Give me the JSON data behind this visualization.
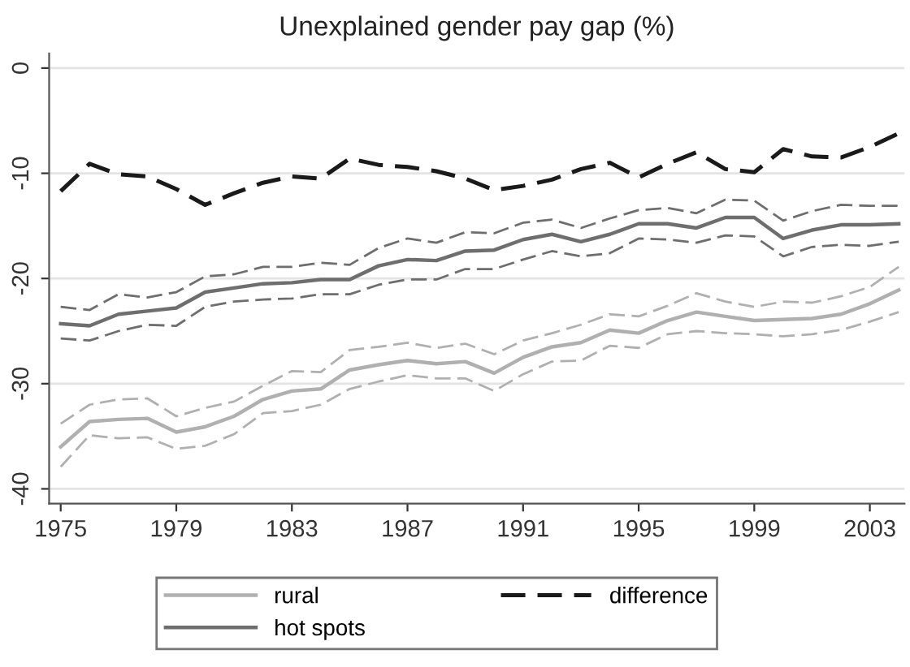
{
  "chart_data": {
    "type": "line",
    "title": "Unexplained gender pay gap (%)",
    "x": [
      1975,
      1976,
      1977,
      1978,
      1979,
      1980,
      1981,
      1982,
      1983,
      1984,
      1985,
      1986,
      1987,
      1988,
      1989,
      1990,
      1991,
      1992,
      1993,
      1994,
      1995,
      1996,
      1997,
      1998,
      1999,
      2000,
      2001,
      2002,
      2003,
      2004
    ],
    "series": [
      {
        "name": "rural",
        "color": "#b0b0b0",
        "line_style": "solid",
        "values": [
          -36.0,
          -33.6,
          -33.4,
          -33.3,
          -34.6,
          -34.1,
          -33.1,
          -31.5,
          -30.7,
          -30.5,
          -28.7,
          -28.2,
          -27.8,
          -28.1,
          -27.9,
          -29.0,
          -27.5,
          -26.5,
          -26.1,
          -24.9,
          -25.2,
          -24.0,
          -23.2,
          -23.6,
          -24.0,
          -23.9,
          -23.8,
          -23.4,
          -22.4,
          -21.1
        ]
      },
      {
        "name": "hot spots",
        "color": "#6e6e6e",
        "line_style": "solid",
        "values": [
          -24.3,
          -24.5,
          -23.4,
          -23.1,
          -22.8,
          -21.3,
          -20.9,
          -20.5,
          -20.4,
          -20.1,
          -20.1,
          -18.8,
          -18.2,
          -18.3,
          -17.4,
          -17.3,
          -16.3,
          -15.8,
          -16.5,
          -15.8,
          -14.8,
          -14.8,
          -15.2,
          -14.2,
          -14.2,
          -16.2,
          -15.4,
          -14.9,
          -14.9,
          -14.8
        ]
      },
      {
        "name": "difference",
        "color": "#1a1a1a",
        "line_style": "dashed",
        "values": [
          -11.7,
          -9.1,
          -10.1,
          -10.3,
          -11.5,
          -13.0,
          -11.9,
          -10.9,
          -10.3,
          -10.5,
          -8.6,
          -9.2,
          -9.4,
          -9.8,
          -10.5,
          -11.6,
          -11.2,
          -10.6,
          -9.6,
          -9.0,
          -10.4,
          -9.1,
          -8.0,
          -9.6,
          -9.9,
          -7.7,
          -8.4,
          -8.5,
          -7.5,
          -6.2
        ]
      },
      {
        "color": "#b0b0b0",
        "line_style": "dashed",
        "values": [
          -33.8,
          -32.0,
          -31.5,
          -31.4,
          -33.1,
          -32.3,
          -31.7,
          -30.2,
          -28.8,
          -28.9,
          -26.8,
          -26.5,
          -26.1,
          -26.6,
          -26.2,
          -27.2,
          -25.9,
          -25.2,
          -24.4,
          -23.4,
          -23.6,
          -22.6,
          -21.4,
          -22.2,
          -22.7,
          -22.2,
          -22.3,
          -21.7,
          -20.8,
          -18.9
        ]
      },
      {
        "color": "#b0b0b0",
        "line_style": "dashed",
        "values": [
          -37.9,
          -34.9,
          -35.2,
          -35.1,
          -36.2,
          -35.9,
          -34.8,
          -32.8,
          -32.6,
          -32.0,
          -30.5,
          -29.8,
          -29.2,
          -29.5,
          -29.5,
          -30.7,
          -29.1,
          -27.9,
          -27.8,
          -26.4,
          -26.6,
          -25.3,
          -25.0,
          -25.2,
          -25.3,
          -25.5,
          -25.3,
          -24.9,
          -24.1,
          -23.2
        ]
      },
      {
        "color": "#6e6e6e",
        "line_style": "dashed",
        "values": [
          -22.7,
          -23.0,
          -21.5,
          -21.8,
          -21.3,
          -19.8,
          -19.6,
          -18.9,
          -18.9,
          -18.5,
          -18.7,
          -17.1,
          -16.2,
          -16.6,
          -15.6,
          -15.7,
          -14.7,
          -14.4,
          -15.2,
          -14.3,
          -13.5,
          -13.3,
          -13.8,
          -12.5,
          -12.6,
          -14.5,
          -13.6,
          -13.0,
          -13.1,
          -13.1
        ]
      },
      {
        "color": "#6e6e6e",
        "line_style": "dashed",
        "values": [
          -25.7,
          -25.9,
          -25.0,
          -24.4,
          -24.5,
          -22.7,
          -22.2,
          -22.0,
          -21.9,
          -21.5,
          -21.5,
          -20.6,
          -20.1,
          -20.1,
          -19.1,
          -19.1,
          -18.2,
          -17.4,
          -17.9,
          -17.6,
          -16.2,
          -16.3,
          -16.6,
          -15.9,
          -16.0,
          -17.9,
          -17.0,
          -16.8,
          -16.9,
          -16.5
        ]
      }
    ],
    "xlim": [
      1974.6,
      2004.2
    ],
    "xticks": [
      1975,
      1979,
      1983,
      1987,
      1991,
      1995,
      1999,
      2003
    ],
    "ylim": [
      -41.4,
      1.4
    ],
    "yticks": [
      -40,
      -30,
      -20,
      -10,
      0
    ],
    "grid": "y",
    "legend": "bottom",
    "marker": "none"
  }
}
